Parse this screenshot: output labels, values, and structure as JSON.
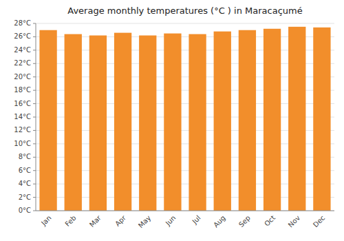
{
  "chart_data": {
    "type": "bar",
    "title": "Average monthly temperatures (°C ) in Maracaçumé",
    "categories": [
      "Jan",
      "Feb",
      "Mar",
      "Apr",
      "May",
      "Jun",
      "Jul",
      "Aug",
      "Sep",
      "Oct",
      "Nov",
      "Dec"
    ],
    "values": [
      27.0,
      26.4,
      26.2,
      26.6,
      26.2,
      26.5,
      26.4,
      26.8,
      27.0,
      27.2,
      27.5,
      27.4
    ],
    "ylim": [
      0,
      28
    ],
    "yticks": [
      {
        "value": 0,
        "label": "0°C"
      },
      {
        "value": 2,
        "label": "2°C"
      },
      {
        "value": 4,
        "label": "4°C"
      },
      {
        "value": 6,
        "label": "6°C"
      },
      {
        "value": 8,
        "label": "8°C"
      },
      {
        "value": 10,
        "label": "10°C"
      },
      {
        "value": 12,
        "label": "12°C"
      },
      {
        "value": 14,
        "label": "14°C"
      },
      {
        "value": 16,
        "label": "16°C"
      },
      {
        "value": 18,
        "label": "18°C"
      },
      {
        "value": 20,
        "label": "20°C"
      },
      {
        "value": 22,
        "label": "22°C"
      },
      {
        "value": 24,
        "label": "24°C"
      },
      {
        "value": 26,
        "label": "26°C"
      },
      {
        "value": 28,
        "label": "28°C"
      }
    ],
    "grid": true
  }
}
